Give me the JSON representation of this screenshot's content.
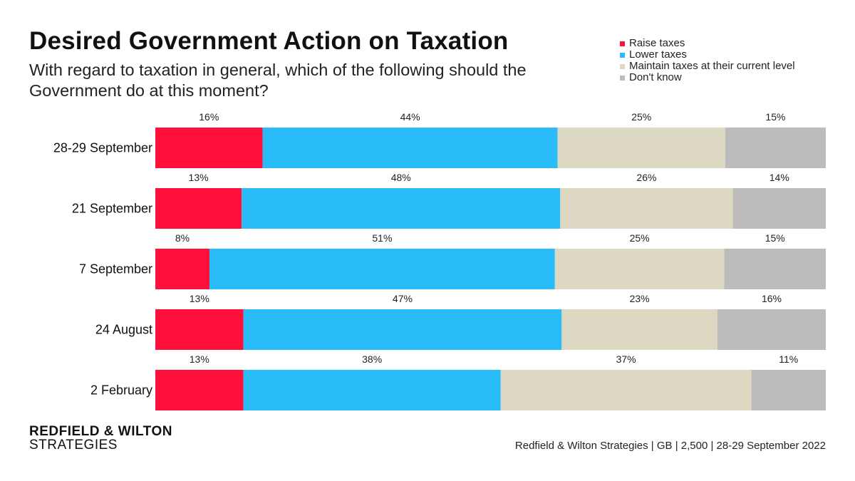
{
  "brand": {
    "line1": "REDFIELD & WILTON",
    "line2": "STRATEGIES"
  },
  "source": "Redfield & Wilton Strategies | GB | 2,500 | 28-29 September 2022",
  "chart_data": {
    "type": "bar",
    "orientation": "horizontal-stacked-100",
    "title": "Desired Government Action on Taxation",
    "subtitle": "With regard to taxation in general, which of the following should the Government do at this moment?",
    "categories": [
      "28-29 September",
      "21 September",
      "7 September",
      "24 August",
      "2 February"
    ],
    "series": [
      {
        "name": "Raise taxes",
        "color": "#ff103b",
        "values": [
          16,
          13,
          8,
          13,
          13
        ]
      },
      {
        "name": "Lower taxes",
        "color": "#2abcf8",
        "values": [
          44,
          48,
          51,
          47,
          38
        ]
      },
      {
        "name": "Maintain taxes at their current level",
        "color": "#ddd8c2",
        "values": [
          25,
          26,
          25,
          23,
          37
        ]
      },
      {
        "name": "Don't know",
        "color": "#bdbbbc",
        "values": [
          15,
          14,
          15,
          16,
          11
        ]
      }
    ],
    "value_suffix": "%",
    "legend_position": "top-right",
    "grid": false
  }
}
